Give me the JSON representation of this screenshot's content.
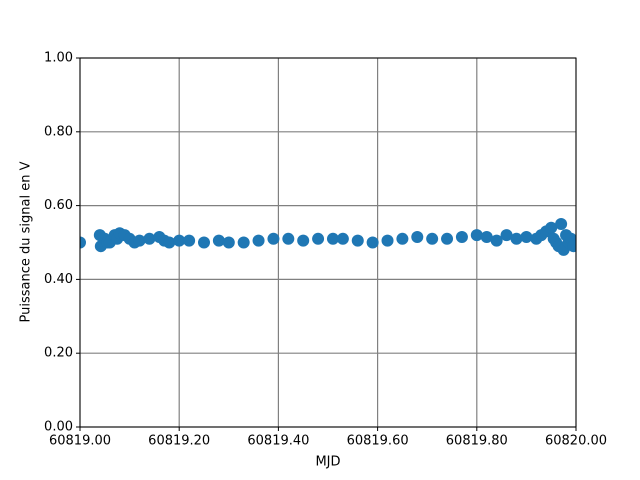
{
  "chart_data": {
    "type": "scatter",
    "xlabel": "MJD",
    "ylabel": "Puissance du signal en V",
    "x": [
      60819.0,
      60819.04,
      60819.042,
      60819.05,
      60819.055,
      60819.06,
      60819.07,
      60819.075,
      60819.08,
      60819.09,
      60819.1,
      60819.11,
      60819.12,
      60819.14,
      60819.16,
      60819.17,
      60819.18,
      60819.2,
      60819.22,
      60819.25,
      60819.28,
      60819.3,
      60819.33,
      60819.36,
      60819.39,
      60819.42,
      60819.45,
      60819.48,
      60819.51,
      60819.53,
      60819.56,
      60819.59,
      60819.62,
      60819.65,
      60819.68,
      60819.71,
      60819.74,
      60819.77,
      60819.8,
      60819.82,
      60819.84,
      60819.86,
      60819.88,
      60819.9,
      60819.92,
      60819.93,
      60819.94,
      60819.95,
      60819.955,
      60819.96,
      60819.965,
      60819.97,
      60819.975,
      60819.98,
      60819.985,
      60819.99,
      60819.995
    ],
    "values": [
      0.5,
      0.52,
      0.49,
      0.51,
      0.5,
      0.5,
      0.52,
      0.51,
      0.525,
      0.52,
      0.51,
      0.5,
      0.505,
      0.51,
      0.515,
      0.505,
      0.5,
      0.505,
      0.505,
      0.5,
      0.505,
      0.5,
      0.5,
      0.505,
      0.51,
      0.51,
      0.505,
      0.51,
      0.51,
      0.51,
      0.505,
      0.5,
      0.505,
      0.51,
      0.515,
      0.51,
      0.51,
      0.515,
      0.52,
      0.515,
      0.505,
      0.52,
      0.51,
      0.515,
      0.51,
      0.52,
      0.53,
      0.54,
      0.51,
      0.5,
      0.49,
      0.55,
      0.48,
      0.52,
      0.5,
      0.51,
      0.49
    ],
    "color": "#1f77b4",
    "xlim": [
      60819.0,
      60820.0
    ],
    "xticks": [
      {
        "value": 60819.0,
        "label": "60819.00"
      },
      {
        "value": 60819.2,
        "label": "60819.20"
      },
      {
        "value": 60819.4,
        "label": "60819.40"
      },
      {
        "value": 60819.6,
        "label": "60819.60"
      },
      {
        "value": 60819.8,
        "label": "60819.80"
      },
      {
        "value": 60820.0,
        "label": "60820.00"
      }
    ],
    "ylim": [
      0,
      1
    ],
    "yticks": [
      {
        "value": 0,
        "label": "0.00"
      },
      {
        "value": 0.2,
        "label": "0.20"
      },
      {
        "value": 0.4,
        "label": "0.40"
      },
      {
        "value": 0.6,
        "label": "0.60"
      },
      {
        "value": 0.8,
        "label": "0.80"
      },
      {
        "value": 1,
        "label": "1.00"
      }
    ],
    "grid": true
  }
}
